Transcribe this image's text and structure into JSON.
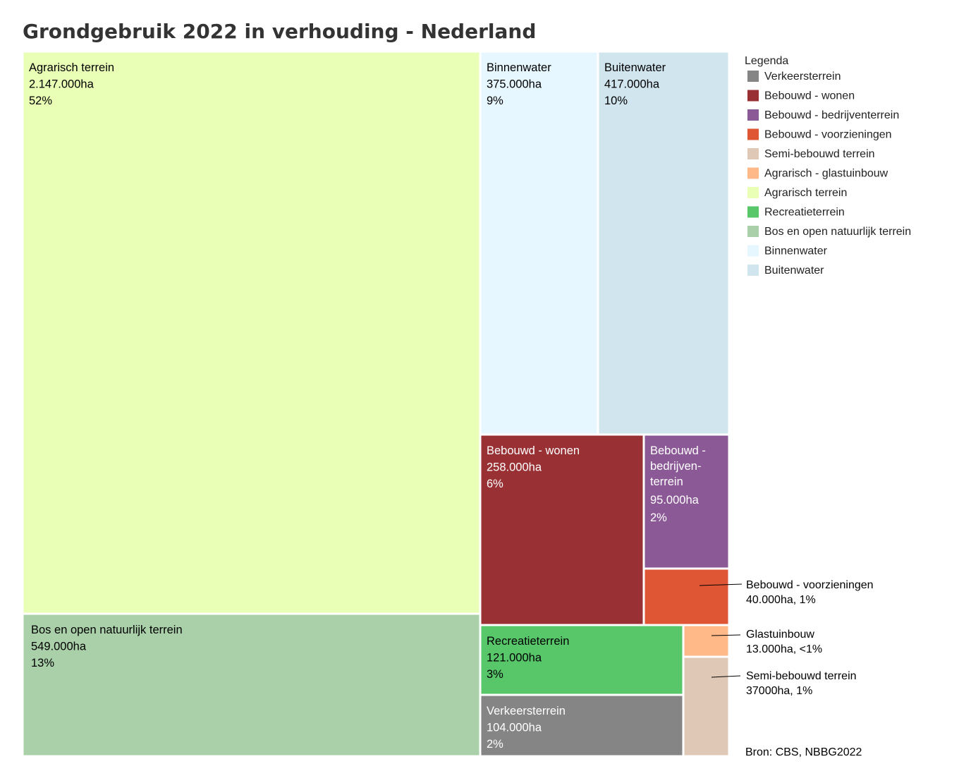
{
  "chart_data": {
    "type": "treemap",
    "title": "Grondgebruik 2022 in verhouding - Nederland",
    "unit": "ha",
    "cells": [
      {
        "key": "agrarisch",
        "name": "Agrarisch terrein",
        "value": 2147000,
        "value_label": "2.147.000ha",
        "percent_label": "52%",
        "color": "#e9ffb5",
        "text_color": "#000000"
      },
      {
        "key": "bos",
        "name": "Bos en open natuurlijk terrein",
        "value": 549000,
        "value_label": "549.000ha",
        "percent_label": "13%",
        "color": "#a9d0a8",
        "text_color": "#000000"
      },
      {
        "key": "binnenwater",
        "name": "Binnenwater",
        "value": 375000,
        "value_label": "375.000ha",
        "percent_label": "9%",
        "color": "#e6f7ff",
        "text_color": "#000000"
      },
      {
        "key": "buitenwater",
        "name": "Buitenwater",
        "value": 417000,
        "value_label": "417.000ha",
        "percent_label": "10%",
        "color": "#d1e5ef",
        "text_color": "#000000"
      },
      {
        "key": "wonen",
        "name": "Bebouwd - wonen",
        "value": 258000,
        "value_label": "258.000ha",
        "percent_label": "6%",
        "color": "#993034",
        "text_color": "#ffffff"
      },
      {
        "key": "bedrijven",
        "name": "Bebouwd - bedrijven-terrein",
        "name_lines": [
          "Bebouwd -",
          "bedrijven-",
          "terrein"
        ],
        "value": 95000,
        "value_label": "95.000ha",
        "percent_label": "2%",
        "color": "#8c5997",
        "text_color": "#ffffff"
      },
      {
        "key": "voorzieningen",
        "name": "Bebouwd - voorzieningen",
        "value": 40000,
        "value_label": "40.000ha",
        "percent_label": "1%",
        "color": "#de5633",
        "text_color": "#000000"
      },
      {
        "key": "recreatie",
        "name": "Recreatieterrein",
        "value": 121000,
        "value_label": "121.000ha",
        "percent_label": "3%",
        "color": "#57c76a",
        "text_color": "#000000"
      },
      {
        "key": "verkeer",
        "name": "Verkeersterrein",
        "value": 104000,
        "value_label": "104.000ha",
        "percent_label": "2%",
        "color": "#858585",
        "text_color": "#ffffff"
      },
      {
        "key": "glastuinbouw",
        "name": "Glastuinbouw",
        "value": 13000,
        "value_label": "13.000ha",
        "percent_label": "<1%",
        "color": "#ffb887",
        "text_color": "#000000"
      },
      {
        "key": "semi",
        "name": "Semi-bebouwd terrein",
        "value": 37000,
        "value_label": "37000ha",
        "percent_label": "1%",
        "color": "#dfc9b6",
        "text_color": "#000000"
      }
    ],
    "annotations": [
      {
        "key": "voorzieningen",
        "line1": "Bebouwd - voorzieningen",
        "line2": "40.000ha,  1%"
      },
      {
        "key": "glastuinbouw",
        "line1": "Glastuinbouw",
        "line2": "13.000ha,  <1%"
      },
      {
        "key": "semi",
        "line1": "Semi-bebouwd terrein",
        "line2": "37000ha,  1%"
      }
    ],
    "legend": {
      "title": "Legenda",
      "position": "right",
      "items": [
        {
          "label": "Verkeersterrein",
          "color": "#858585"
        },
        {
          "label": "Bebouwd - wonen",
          "color": "#993034"
        },
        {
          "label": "Bebouwd - bedrijventerrein",
          "color": "#8c5997"
        },
        {
          "label": "Bebouwd - voorzieningen",
          "color": "#de5633"
        },
        {
          "label": "Semi-bebouwd terrein",
          "color": "#dfc9b6"
        },
        {
          "label": "Agrarisch - glastuinbouw",
          "color": "#ffb887"
        },
        {
          "label": "Agrarisch terrein",
          "color": "#e9ffb5"
        },
        {
          "label": "Recreatieterrein",
          "color": "#57c76a"
        },
        {
          "label": "Bos en open natuurlijk terrein",
          "color": "#a9d0a8"
        },
        {
          "label": "Binnenwater",
          "color": "#e6f7ff"
        },
        {
          "label": "Buitenwater",
          "color": "#d1e5ef"
        }
      ]
    },
    "source": "Bron: CBS, NBBG2022"
  }
}
